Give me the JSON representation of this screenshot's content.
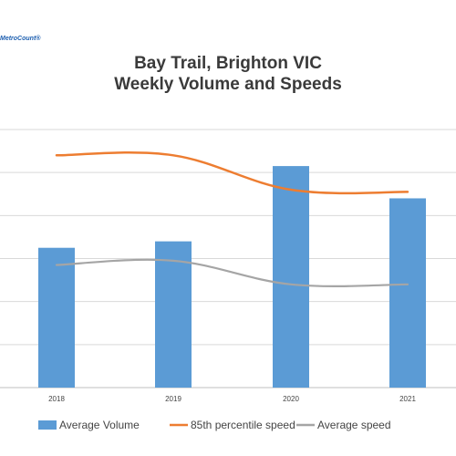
{
  "logo": {
    "text": "MetroCount®"
  },
  "chart_data": {
    "type": "bar",
    "title": [
      "Bay Trail, Brighton VIC",
      "Weekly Volume and Speeds"
    ],
    "categories": [
      "2018",
      "2019",
      "2020",
      "2021"
    ],
    "ylim": [
      0,
      6
    ],
    "grid": true,
    "legend_position": "bottom",
    "series": [
      {
        "name": "Average Volume",
        "type": "bar",
        "color": "#5b9bd5",
        "values": [
          3.25,
          3.4,
          5.15,
          4.4
        ]
      },
      {
        "name": "85th percentile speed",
        "type": "line",
        "color": "#ed7d31",
        "values": [
          5.4,
          5.4,
          4.6,
          4.55
        ]
      },
      {
        "name": "Average speed",
        "type": "line",
        "color": "#a5a5a5",
        "values": [
          2.85,
          2.95,
          2.4,
          2.4
        ]
      }
    ]
  }
}
